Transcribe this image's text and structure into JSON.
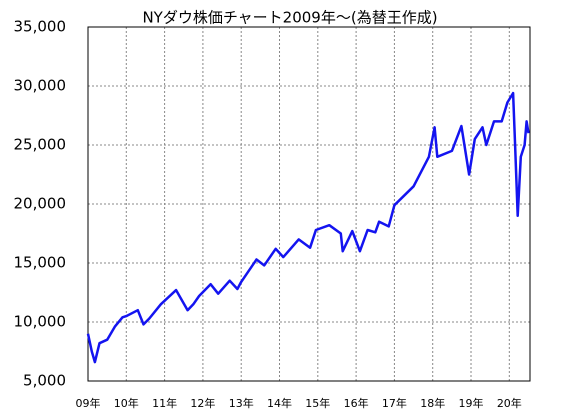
{
  "chart_data": {
    "type": "line",
    "title": "NYダウ株価チャート2009年～(為替王作成)",
    "x": [
      2009.0,
      2009.1,
      2009.18,
      2009.3,
      2009.5,
      2009.7,
      2009.9,
      2010.0,
      2010.3,
      2010.45,
      2010.6,
      2010.9,
      2011.3,
      2011.6,
      2011.75,
      2011.9,
      2012.2,
      2012.4,
      2012.7,
      2012.9,
      2013.0,
      2013.4,
      2013.6,
      2013.9,
      2014.1,
      2014.5,
      2014.8,
      2014.95,
      2015.3,
      2015.6,
      2015.65,
      2015.9,
      2016.1,
      2016.3,
      2016.5,
      2016.6,
      2016.85,
      2017.0,
      2017.5,
      2017.9,
      2018.05,
      2018.12,
      2018.5,
      2018.75,
      2018.95,
      2019.1,
      2019.3,
      2019.4,
      2019.6,
      2019.8,
      2019.95,
      2020.1,
      2020.15,
      2020.22,
      2020.3,
      2020.4,
      2020.45,
      2020.5
    ],
    "series": [
      {
        "name": "NYダウ",
        "color": "#1414f0",
        "values": [
          9000,
          7500,
          6600,
          8200,
          8500,
          9600,
          10400,
          10500,
          11000,
          9800,
          10300,
          11500,
          12700,
          11000,
          11500,
          12200,
          13200,
          12400,
          13500,
          12800,
          13400,
          15300,
          14800,
          16200,
          15500,
          17000,
          16300,
          17800,
          18200,
          17500,
          16000,
          17700,
          16000,
          17800,
          17600,
          18500,
          18100,
          19900,
          21500,
          24000,
          26500,
          24000,
          24500,
          26600,
          22500,
          25500,
          26500,
          25000,
          27000,
          27000,
          28600,
          29400,
          25000,
          19000,
          24000,
          25000,
          27000,
          26000
        ]
      }
    ],
    "xlim": [
      2009,
      2020.54
    ],
    "ylim": [
      5000,
      35000
    ],
    "xticks": [
      {
        "value": 2009,
        "label": "09年"
      },
      {
        "value": 2010,
        "label": "10年"
      },
      {
        "value": 2011,
        "label": "11年"
      },
      {
        "value": 2012,
        "label": "12年"
      },
      {
        "value": 2013,
        "label": "13年"
      },
      {
        "value": 2014,
        "label": "14年"
      },
      {
        "value": 2015,
        "label": "15年"
      },
      {
        "value": 2016,
        "label": "16年"
      },
      {
        "value": 2017,
        "label": "17年"
      },
      {
        "value": 2018,
        "label": "18年"
      },
      {
        "value": 2019,
        "label": "19年"
      },
      {
        "value": 2020,
        "label": "20年"
      }
    ],
    "yticks": [
      {
        "value": 5000,
        "label": "5,000"
      },
      {
        "value": 10000,
        "label": "10,000"
      },
      {
        "value": 15000,
        "label": "15,000"
      },
      {
        "value": 20000,
        "label": "20,000"
      },
      {
        "value": 25000,
        "label": "25,000"
      },
      {
        "value": 30000,
        "label": "30,000"
      },
      {
        "value": 35000,
        "label": "35,000"
      }
    ],
    "grid": true
  }
}
